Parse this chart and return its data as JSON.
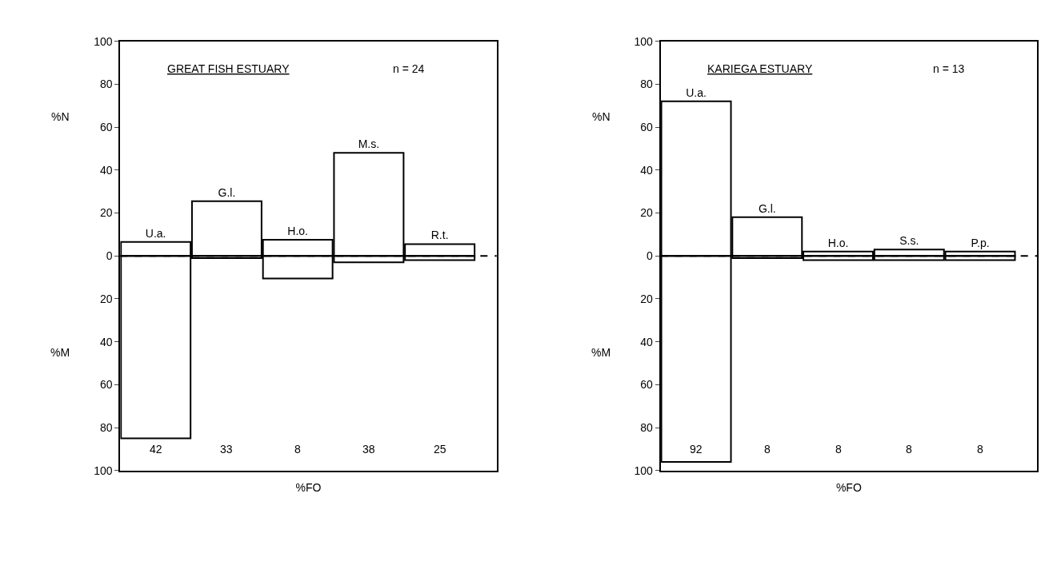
{
  "chart_data": [
    {
      "type": "bar",
      "title": "GREAT FISH ESTUARY",
      "subtitle": "n = 24",
      "xlabel": "%FO",
      "ylabel": "%N",
      "stacked": true,
      "categories": [
        null,
        null,
        null,
        null,
        null
      ],
      "series": [
        {
          "color": "#000000",
          "values": [
            6.5,
            25.5,
            7.5,
            48,
            5.5
          ],
          "value_labels": [
            "U.a.",
            "G.l.",
            "H.o.",
            "M.s.",
            "R.t."
          ]
        },
        {
          "color": "#000000",
          "values": [
            -85,
            -1,
            -10.5,
            -3,
            -2
          ]
        }
      ],
      "annotations": [
        "%M",
        "42",
        "33",
        "8",
        "38",
        "25"
      ],
      "ylim": [
        -100,
        100
      ],
      "yticks": [
        {
          "value": -100,
          "label": "100"
        },
        {
          "value": -80,
          "label": "80"
        },
        {
          "value": -60,
          "label": "60"
        },
        {
          "value": -40,
          "label": "40"
        },
        {
          "value": -20,
          "label": "20"
        },
        0,
        20,
        40,
        60,
        80,
        100
      ],
      "ref_lines": [
        {
          "axis": "y",
          "value": 0,
          "line_style": "dashed",
          "color": "#000000"
        }
      ],
      "tick_labels": "y"
    },
    {
      "type": "bar",
      "title": "KARIEGA ESTUARY",
      "subtitle": "n = 13",
      "xlabel": "%FO",
      "ylabel": "%N",
      "stacked": true,
      "categories": [
        null,
        null,
        null,
        null,
        null
      ],
      "series": [
        {
          "color": "#000000",
          "values": [
            72,
            18,
            2,
            3,
            2
          ],
          "value_labels": [
            "U.a.",
            "G.l.",
            "H.o.",
            "S.s.",
            "P.p."
          ]
        },
        {
          "color": "#000000",
          "values": [
            -96,
            -1,
            -2,
            -2,
            -2
          ]
        }
      ],
      "annotations": [
        "%M",
        "92",
        "8",
        "8",
        "8",
        "8"
      ],
      "ylim": [
        -100,
        100
      ],
      "yticks": [
        {
          "value": -100,
          "label": "100"
        },
        {
          "value": -80,
          "label": "80"
        },
        {
          "value": -60,
          "label": "60"
        },
        {
          "value": -40,
          "label": "40"
        },
        {
          "value": -20,
          "label": "20"
        },
        0,
        20,
        40,
        60,
        80,
        100
      ],
      "ref_lines": [
        {
          "axis": "y",
          "value": 0,
          "line_style": "dashed",
          "color": "#000000"
        }
      ],
      "tick_labels": "y"
    }
  ]
}
